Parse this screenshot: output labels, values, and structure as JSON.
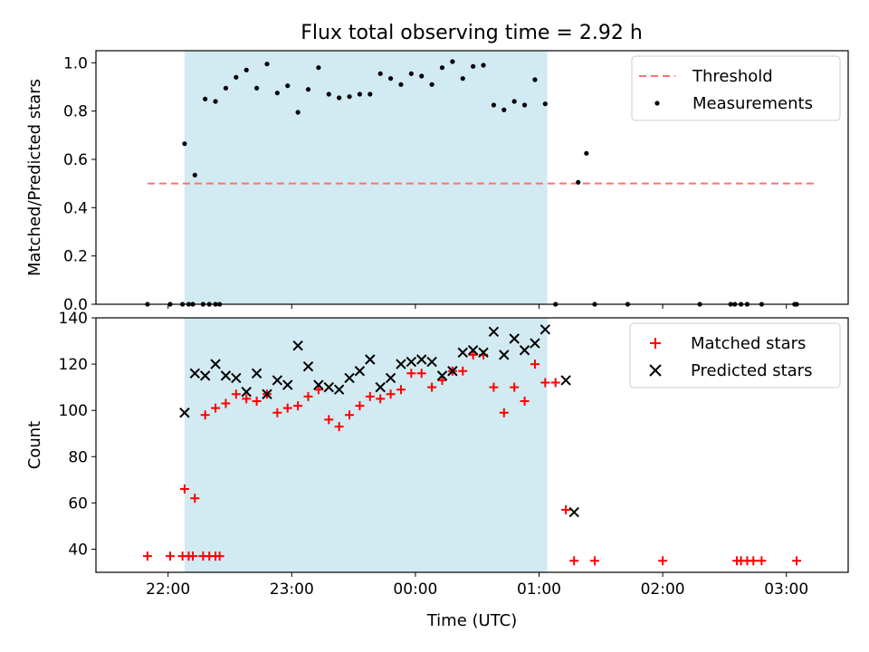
{
  "title": "Flux total observing time = 2.92 h",
  "colors": {
    "shade": "#add8e6",
    "threshold": "#ff7070",
    "measurement": "#000000",
    "matched": "#ff0000",
    "predicted": "#000000"
  },
  "chart_data": [
    {
      "type": "scatter",
      "panel": "top",
      "ylabel": "Matched/Predicted stars",
      "xlim": [
        "21:25",
        "03:30"
      ],
      "ylim": [
        0,
        1.05
      ],
      "yticks": [
        0.0,
        0.2,
        0.4,
        0.6,
        0.8,
        1.0
      ],
      "ytick_labels": [
        "0.0",
        "0.2",
        "0.4",
        "0.6",
        "0.8",
        "1.0"
      ],
      "shaded_span": [
        "22:08",
        "01:04"
      ],
      "legend": {
        "position": "upper right",
        "entries": [
          "Threshold",
          "Measurements"
        ]
      },
      "threshold": {
        "name": "Threshold",
        "x": [
          "21:50",
          "03:15"
        ],
        "y": 0.5,
        "style": "dashed"
      },
      "series": [
        {
          "name": "Measurements",
          "marker": "dot",
          "points": [
            [
              "21:50",
              0.0
            ],
            [
              "22:01",
              0.0
            ],
            [
              "22:07",
              0.0
            ],
            [
              "22:10",
              0.0
            ],
            [
              "22:12",
              0.0
            ],
            [
              "22:17",
              0.0
            ],
            [
              "22:20",
              0.0
            ],
            [
              "22:23",
              0.0
            ],
            [
              "22:25",
              0.0
            ],
            [
              "22:08",
              0.665
            ],
            [
              "22:13",
              0.535
            ],
            [
              "22:18",
              0.85
            ],
            [
              "22:23",
              0.84
            ],
            [
              "22:28",
              0.895
            ],
            [
              "22:33",
              0.94
            ],
            [
              "22:38",
              0.97
            ],
            [
              "22:43",
              0.895
            ],
            [
              "22:48",
              0.995
            ],
            [
              "22:53",
              0.875
            ],
            [
              "22:58",
              0.905
            ],
            [
              "23:03",
              0.795
            ],
            [
              "23:08",
              0.89
            ],
            [
              "23:13",
              0.98
            ],
            [
              "23:18",
              0.87
            ],
            [
              "23:23",
              0.855
            ],
            [
              "23:28",
              0.86
            ],
            [
              "23:33",
              0.87
            ],
            [
              "23:38",
              0.87
            ],
            [
              "23:43",
              0.955
            ],
            [
              "23:48",
              0.935
            ],
            [
              "23:53",
              0.91
            ],
            [
              "23:58",
              0.955
            ],
            [
              "00:03",
              0.945
            ],
            [
              "00:08",
              0.91
            ],
            [
              "00:13",
              0.98
            ],
            [
              "00:18",
              1.005
            ],
            [
              "00:23",
              0.935
            ],
            [
              "00:28",
              0.985
            ],
            [
              "00:33",
              0.99
            ],
            [
              "00:38",
              0.825
            ],
            [
              "00:43",
              0.805
            ],
            [
              "00:48",
              0.84
            ],
            [
              "00:53",
              0.825
            ],
            [
              "00:58",
              0.93
            ],
            [
              "01:03",
              0.83
            ],
            [
              "01:08",
              0.0
            ],
            [
              "01:19",
              0.505
            ],
            [
              "01:23",
              0.625
            ],
            [
              "01:27",
              0.0
            ],
            [
              "01:43",
              0.0
            ],
            [
              "02:18",
              0.0
            ],
            [
              "02:33",
              0.0
            ],
            [
              "02:35",
              0.0
            ],
            [
              "02:38",
              0.0
            ],
            [
              "02:41",
              0.0
            ],
            [
              "02:48",
              0.0
            ],
            [
              "03:04",
              0.0
            ],
            [
              "03:05",
              0.0
            ]
          ]
        }
      ]
    },
    {
      "type": "scatter",
      "panel": "bottom",
      "xlabel": "Time (UTC)",
      "ylabel": "Count",
      "xlim": [
        "21:25",
        "03:30"
      ],
      "ylim": [
        30,
        140
      ],
      "xticks": [
        "22:00",
        "23:00",
        "00:00",
        "01:00",
        "02:00",
        "03:00"
      ],
      "yticks": [
        40,
        60,
        80,
        100,
        120,
        140
      ],
      "ytick_labels": [
        "40",
        "60",
        "80",
        "100",
        "120",
        "140"
      ],
      "shaded_span": [
        "22:08",
        "01:04"
      ],
      "legend": {
        "position": "upper right",
        "entries": [
          "Matched stars",
          "Predicted stars"
        ]
      },
      "series": [
        {
          "name": "Matched stars",
          "marker": "plus",
          "points": [
            [
              "21:50",
              37
            ],
            [
              "22:01",
              37
            ],
            [
              "22:07",
              37
            ],
            [
              "22:10",
              37
            ],
            [
              "22:12",
              37
            ],
            [
              "22:17",
              37
            ],
            [
              "22:20",
              37
            ],
            [
              "22:23",
              37
            ],
            [
              "22:25",
              37
            ],
            [
              "22:08",
              66
            ],
            [
              "22:13",
              62
            ],
            [
              "22:18",
              98
            ],
            [
              "22:23",
              101
            ],
            [
              "22:28",
              103
            ],
            [
              "22:33",
              107
            ],
            [
              "22:38",
              105
            ],
            [
              "22:43",
              104
            ],
            [
              "22:48",
              107
            ],
            [
              "22:53",
              99
            ],
            [
              "22:58",
              101
            ],
            [
              "23:03",
              102
            ],
            [
              "23:08",
              106
            ],
            [
              "23:13",
              109
            ],
            [
              "23:18",
              96
            ],
            [
              "23:23",
              93
            ],
            [
              "23:28",
              98
            ],
            [
              "23:33",
              102
            ],
            [
              "23:38",
              106
            ],
            [
              "23:43",
              105
            ],
            [
              "23:48",
              107
            ],
            [
              "23:53",
              109
            ],
            [
              "23:58",
              116
            ],
            [
              "00:03",
              116
            ],
            [
              "00:08",
              110
            ],
            [
              "00:13",
              113
            ],
            [
              "00:18",
              117
            ],
            [
              "00:23",
              117
            ],
            [
              "00:28",
              124
            ],
            [
              "00:33",
              124
            ],
            [
              "00:38",
              110
            ],
            [
              "00:43",
              99
            ],
            [
              "00:48",
              110
            ],
            [
              "00:53",
              104
            ],
            [
              "00:58",
              120
            ],
            [
              "01:03",
              112
            ],
            [
              "01:08",
              112
            ],
            [
              "01:13",
              57
            ],
            [
              "01:17",
              35
            ],
            [
              "01:27",
              35
            ],
            [
              "02:00",
              35
            ],
            [
              "02:36",
              35
            ],
            [
              "02:38",
              35
            ],
            [
              "02:41",
              35
            ],
            [
              "02:44",
              35
            ],
            [
              "02:48",
              35
            ],
            [
              "03:05",
              35
            ]
          ]
        },
        {
          "name": "Predicted stars",
          "marker": "x",
          "points": [
            [
              "22:08",
              99
            ],
            [
              "22:13",
              116
            ],
            [
              "22:18",
              115
            ],
            [
              "22:23",
              120
            ],
            [
              "22:28",
              115
            ],
            [
              "22:33",
              114
            ],
            [
              "22:38",
              108
            ],
            [
              "22:43",
              116
            ],
            [
              "22:48",
              107
            ],
            [
              "22:53",
              113
            ],
            [
              "22:58",
              111
            ],
            [
              "23:03",
              128
            ],
            [
              "23:08",
              119
            ],
            [
              "23:13",
              111
            ],
            [
              "23:18",
              110
            ],
            [
              "23:23",
              109
            ],
            [
              "23:28",
              114
            ],
            [
              "23:33",
              117
            ],
            [
              "23:38",
              122
            ],
            [
              "23:43",
              110
            ],
            [
              "23:48",
              114
            ],
            [
              "23:53",
              120
            ],
            [
              "23:58",
              121
            ],
            [
              "00:03",
              122
            ],
            [
              "00:08",
              121
            ],
            [
              "00:13",
              115
            ],
            [
              "00:18",
              117
            ],
            [
              "00:23",
              125
            ],
            [
              "00:28",
              126
            ],
            [
              "00:33",
              125
            ],
            [
              "00:38",
              134
            ],
            [
              "00:43",
              124
            ],
            [
              "00:48",
              131
            ],
            [
              "00:53",
              126
            ],
            [
              "00:58",
              129
            ],
            [
              "01:03",
              135
            ],
            [
              "01:13",
              113
            ],
            [
              "01:17",
              56
            ]
          ]
        }
      ]
    }
  ]
}
